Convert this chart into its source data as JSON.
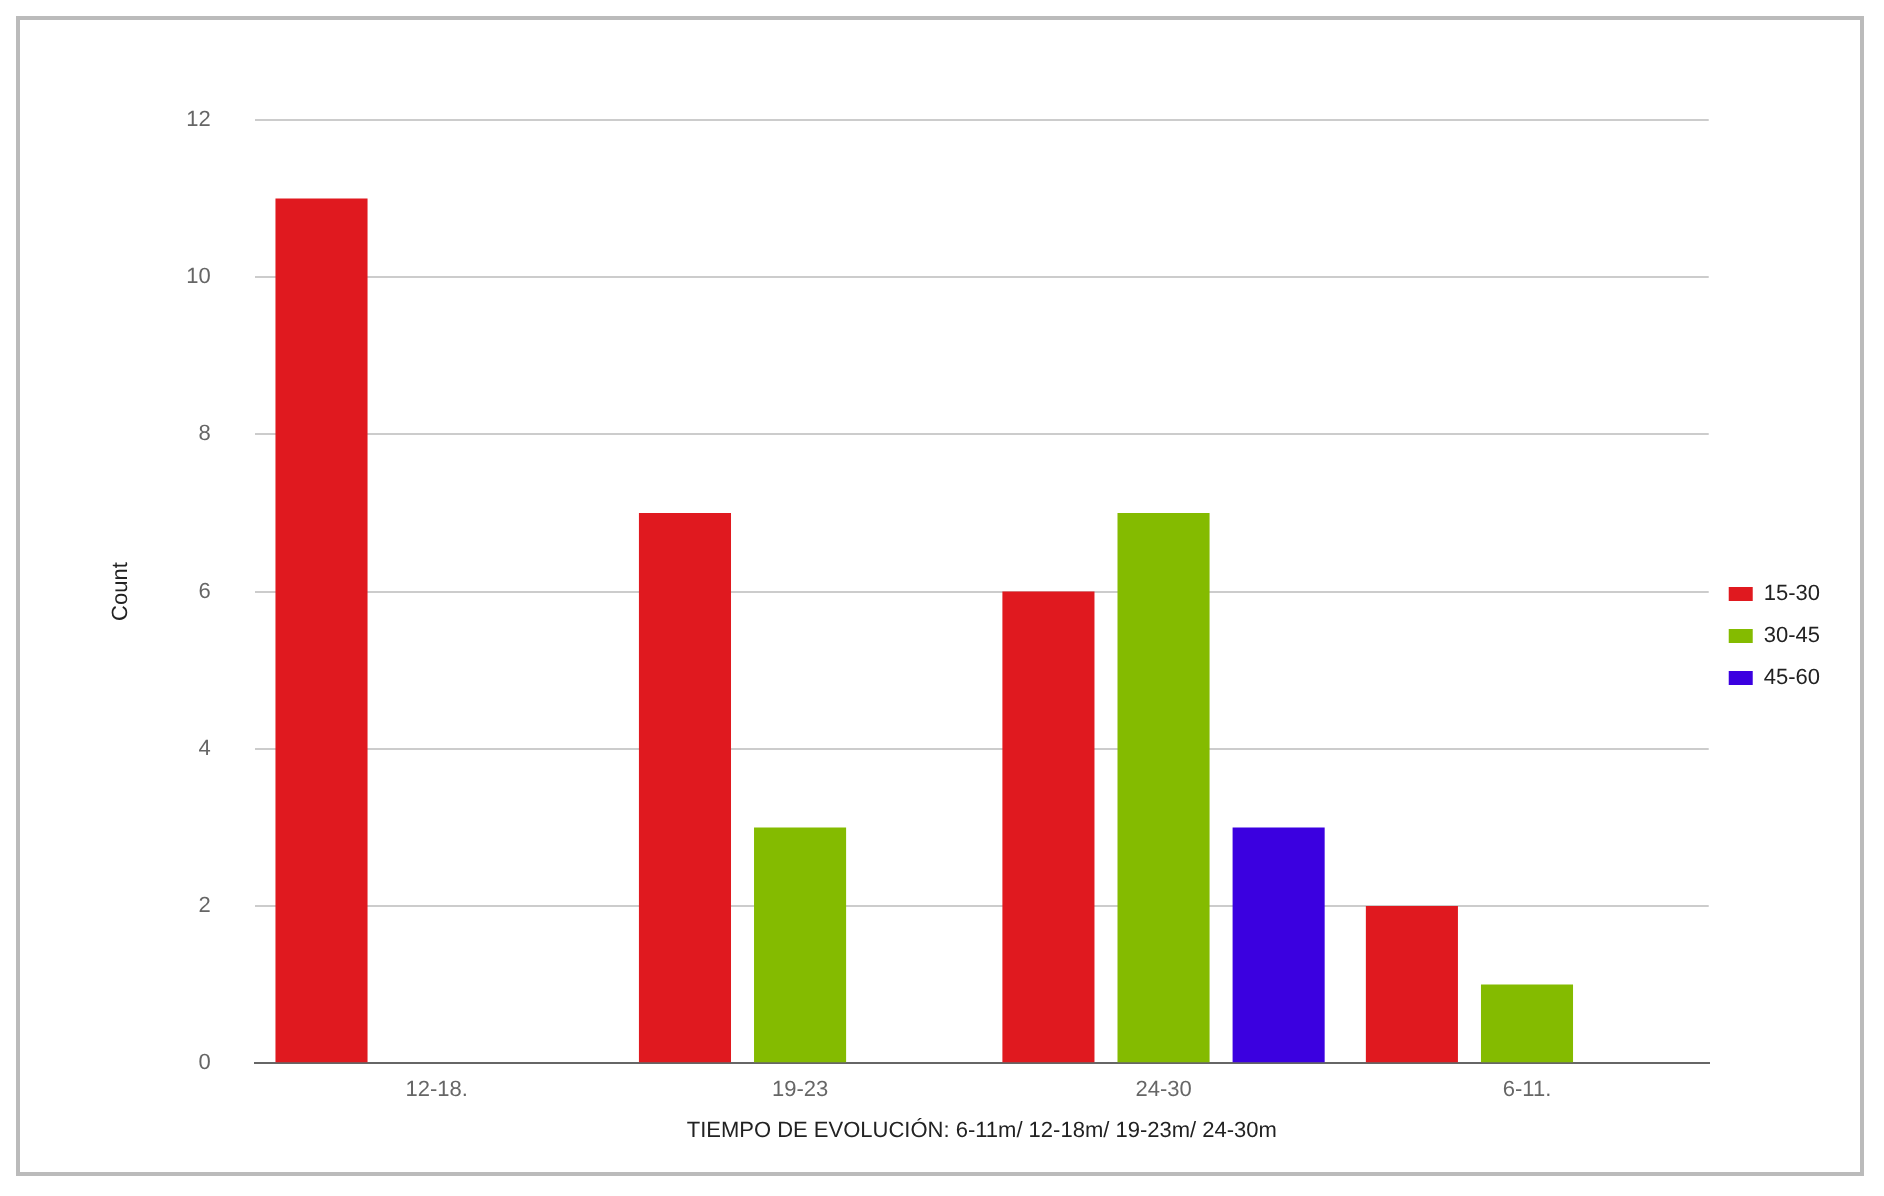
{
  "chart_data": {
    "type": "bar",
    "xlabel": "TIEMPO DE EVOLUCIÓN: 6-11m/ 12-18m/ 19-23m/ 24-30m",
    "ylabel": "Count",
    "categories": [
      "12-18.",
      "19-23",
      "24-30",
      "6-11."
    ],
    "series": [
      {
        "name": "15-30",
        "color": "#e0191f",
        "values": [
          11,
          7,
          6,
          2
        ]
      },
      {
        "name": "30-45",
        "color": "#84bb00",
        "values": [
          null,
          3,
          7,
          1
        ]
      },
      {
        "name": "45-60",
        "color": "#3b00e0",
        "values": [
          null,
          null,
          3,
          null
        ]
      }
    ],
    "ylim": [
      0,
      12
    ],
    "yticks": [
      0,
      2,
      4,
      6,
      8,
      10,
      12
    ],
    "grid": "y",
    "legend": "right"
  }
}
